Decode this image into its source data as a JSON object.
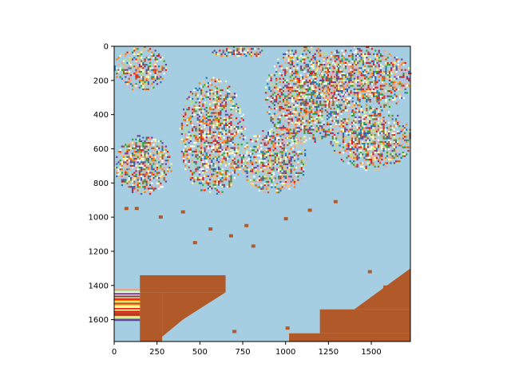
{
  "chart_data": {
    "type": "heatmap",
    "title": "",
    "xlabel": "",
    "ylabel": "",
    "xlim": [
      0,
      1728
    ],
    "ylim": [
      1728,
      0
    ],
    "x_ticks": [
      0,
      250,
      500,
      750,
      1000,
      1250,
      1500
    ],
    "y_ticks": [
      0,
      200,
      400,
      600,
      800,
      1000,
      1200,
      1400,
      1600
    ],
    "x_tick_labels": [
      "0",
      "250",
      "500",
      "750",
      "1000",
      "1250",
      "1500"
    ],
    "y_tick_labels": [
      "0",
      "200",
      "400",
      "600",
      "800",
      "1000",
      "1200",
      "1400",
      "1600"
    ],
    "grid": false,
    "legend": "none",
    "colormap": "Paired",
    "colors": {
      "background": "#a6cee3",
      "dominant_region": "#b15928",
      "scatter_palette": [
        "#1f78b4",
        "#b2df8a",
        "#33a02c",
        "#fb9a99",
        "#e31a1c",
        "#fdbf6f",
        "#ff7f00",
        "#cab2d6",
        "#6a3d9a",
        "#ffff99",
        "#b15928",
        "#ffffff"
      ]
    },
    "noisy_regions": [
      {
        "x": [
          0,
          300
        ],
        "y": [
          0,
          250
        ],
        "density": 0.7
      },
      {
        "x": [
          380,
          760
        ],
        "y": [
          180,
          860
        ],
        "density": 0.75
      },
      {
        "x": [
          0,
          330
        ],
        "y": [
          520,
          860
        ],
        "density": 0.85
      },
      {
        "x": [
          740,
          1120
        ],
        "y": [
          480,
          860
        ],
        "density": 0.7
      },
      {
        "x": [
          880,
          1350
        ],
        "y": [
          0,
          560
        ],
        "density": 0.75
      },
      {
        "x": [
          1140,
          1728
        ],
        "y": [
          0,
          380
        ],
        "density": 0.75
      },
      {
        "x": [
          1260,
          1728
        ],
        "y": [
          360,
          720
        ],
        "density": 0.8
      },
      {
        "x": [
          560,
          880
        ],
        "y": [
          0,
          60
        ],
        "density": 0.7
      }
    ],
    "solid_regions": [
      {
        "x": [
          150,
          650
        ],
        "y": [
          1340,
          1440
        ]
      },
      {
        "x": [
          150,
          280
        ],
        "y": [
          1440,
          1728
        ]
      },
      {
        "x": [
          1020,
          1728
        ],
        "y": [
          1680,
          1728
        ]
      },
      {
        "x": [
          1200,
          1728
        ],
        "y": [
          1540,
          1680
        ]
      }
    ]
  }
}
